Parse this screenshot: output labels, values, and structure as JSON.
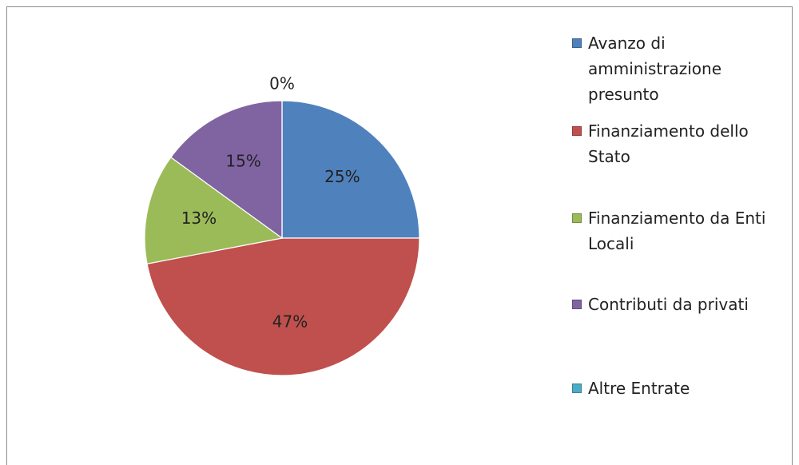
{
  "chart_data": {
    "type": "pie",
    "categories": [
      "Avanzo di amministrazione presunto",
      "Finanziamento dello Stato",
      "Finanziamento da Enti Locali",
      "Contributi da privati",
      "Altre Entrate"
    ],
    "values": [
      25,
      47,
      13,
      15,
      0
    ],
    "value_labels": [
      "25%",
      "47%",
      "13%",
      "15%",
      "0%"
    ],
    "colors": [
      "#4f81bd",
      "#c0504d",
      "#9bbb59",
      "#8064a2",
      "#4bacc6"
    ],
    "legend": "right"
  }
}
